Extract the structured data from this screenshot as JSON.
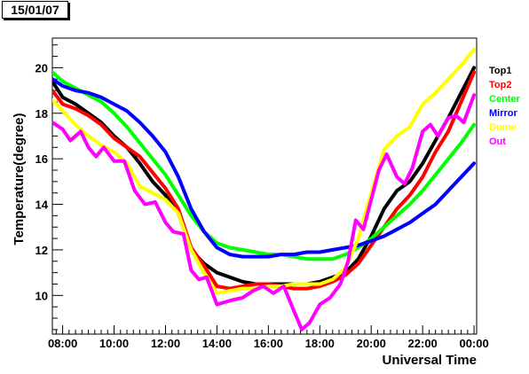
{
  "date_label": "15/01/07",
  "chart_data": {
    "type": "line",
    "title": "",
    "xlabel": "Universal Time",
    "ylabel": "Temperature(degree)",
    "xlim": [
      7.6,
      24.1
    ],
    "ylim": [
      8.3,
      21.3
    ],
    "x_ticks": [
      8,
      10,
      12,
      14,
      16,
      18,
      20,
      22,
      24
    ],
    "x_tick_labels": [
      "08:00",
      "10:00",
      "12:00",
      "14:00",
      "16:00",
      "18:00",
      "20:00",
      "22:00",
      "00:00"
    ],
    "y_ticks": [
      10,
      12,
      14,
      16,
      18,
      20
    ],
    "y_tick_labels": [
      "10",
      "12",
      "14",
      "16",
      "18",
      "20"
    ],
    "grid": false,
    "legend_position": "right",
    "series": [
      {
        "name": "Top1",
        "color": "#000000",
        "x": [
          7.6,
          8.0,
          8.5,
          9.0,
          9.5,
          10.0,
          10.5,
          11.0,
          11.5,
          12.0,
          12.5,
          13.0,
          13.5,
          14.0,
          14.5,
          15.0,
          15.5,
          16.0,
          16.5,
          17.0,
          17.5,
          18.0,
          18.5,
          19.0,
          19.5,
          20.0,
          20.5,
          21.0,
          21.5,
          22.0,
          22.5,
          23.0,
          23.5,
          24.0
        ],
        "y": [
          19.4,
          18.7,
          18.4,
          18.0,
          17.6,
          17.0,
          16.5,
          15.8,
          15.0,
          14.4,
          13.6,
          12.0,
          11.4,
          11.0,
          10.8,
          10.6,
          10.5,
          10.5,
          10.5,
          10.5,
          10.5,
          10.6,
          10.8,
          11.0,
          11.6,
          12.6,
          13.8,
          14.6,
          15.0,
          15.8,
          16.8,
          17.8,
          18.9,
          20.0
        ]
      },
      {
        "name": "Top2",
        "color": "#ff0000",
        "x": [
          7.6,
          8.0,
          8.5,
          9.0,
          9.5,
          10.0,
          10.5,
          11.0,
          11.5,
          12.0,
          12.5,
          13.0,
          13.5,
          14.0,
          14.5,
          15.0,
          15.5,
          16.0,
          16.5,
          17.0,
          17.5,
          18.0,
          18.5,
          19.0,
          19.5,
          20.0,
          20.5,
          21.0,
          21.5,
          22.0,
          22.5,
          23.0,
          23.5,
          24.0
        ],
        "y": [
          19.0,
          18.4,
          18.2,
          17.9,
          17.5,
          16.9,
          16.5,
          16.1,
          15.4,
          14.7,
          13.8,
          12.1,
          11.3,
          10.4,
          10.3,
          10.4,
          10.5,
          10.5,
          10.4,
          10.3,
          10.3,
          10.4,
          10.6,
          10.9,
          11.4,
          12.2,
          13.0,
          13.8,
          14.4,
          15.2,
          16.3,
          17.2,
          18.5,
          19.8
        ]
      },
      {
        "name": "Center",
        "color": "#00ff00",
        "x": [
          7.6,
          8.0,
          8.5,
          9.0,
          9.5,
          10.0,
          10.5,
          11.0,
          11.5,
          12.0,
          12.5,
          13.0,
          13.5,
          14.0,
          14.5,
          15.0,
          15.5,
          16.0,
          16.5,
          17.0,
          17.5,
          18.0,
          18.5,
          19.0,
          19.5,
          20.0,
          20.5,
          21.0,
          21.5,
          22.0,
          22.5,
          23.0,
          23.5,
          24.0
        ],
        "y": [
          19.8,
          19.4,
          19.1,
          18.8,
          18.5,
          18.0,
          17.4,
          16.7,
          16.0,
          15.3,
          14.4,
          13.5,
          12.8,
          12.3,
          12.1,
          12.0,
          11.9,
          11.8,
          11.8,
          11.7,
          11.6,
          11.6,
          11.6,
          11.8,
          12.1,
          12.5,
          13.0,
          13.5,
          14.0,
          14.6,
          15.3,
          16.0,
          16.7,
          17.5
        ]
      },
      {
        "name": "Mirror",
        "color": "#0000ff",
        "x": [
          7.6,
          8.0,
          8.5,
          9.0,
          9.5,
          10.0,
          10.5,
          11.0,
          11.5,
          12.0,
          12.5,
          13.0,
          13.5,
          14.0,
          14.5,
          15.0,
          15.5,
          16.0,
          16.5,
          17.0,
          17.5,
          18.0,
          18.5,
          19.0,
          19.5,
          20.0,
          20.5,
          21.0,
          21.5,
          22.0,
          22.5,
          23.0,
          23.5,
          24.0
        ],
        "y": [
          19.5,
          19.2,
          19.0,
          18.9,
          18.7,
          18.4,
          18.1,
          17.6,
          17.0,
          16.3,
          15.2,
          13.8,
          12.8,
          12.1,
          11.8,
          11.7,
          11.7,
          11.7,
          11.8,
          11.8,
          11.9,
          11.9,
          12.0,
          12.1,
          12.2,
          12.4,
          12.6,
          12.9,
          13.2,
          13.6,
          14.0,
          14.6,
          15.2,
          15.8
        ]
      },
      {
        "name": "Dome",
        "color": "#ffff00",
        "x": [
          7.6,
          8.0,
          8.5,
          9.0,
          9.5,
          10.0,
          10.5,
          11.0,
          11.5,
          12.0,
          12.5,
          13.0,
          13.5,
          14.0,
          14.5,
          15.0,
          15.5,
          16.0,
          16.5,
          17.0,
          17.5,
          18.0,
          18.5,
          19.0,
          19.5,
          20.0,
          20.5,
          21.0,
          21.5,
          22.0,
          22.5,
          23.0,
          23.5,
          24.0
        ],
        "y": [
          18.6,
          18.1,
          17.5,
          17.0,
          16.6,
          16.3,
          15.8,
          14.8,
          14.5,
          14.2,
          13.6,
          12.0,
          11.0,
          10.1,
          10.2,
          10.3,
          10.3,
          10.4,
          10.4,
          10.5,
          10.5,
          10.5,
          10.7,
          11.2,
          12.5,
          14.5,
          16.4,
          17.0,
          17.4,
          18.4,
          18.9,
          19.5,
          20.1,
          20.8
        ]
      },
      {
        "name": "Out",
        "color": "#ff00ff",
        "x": [
          7.6,
          8.0,
          8.3,
          8.7,
          9.0,
          9.3,
          9.6,
          10.0,
          10.4,
          10.8,
          11.2,
          11.6,
          12.0,
          12.3,
          12.7,
          13.0,
          13.3,
          13.6,
          14.0,
          14.3,
          14.6,
          15.0,
          15.4,
          15.8,
          16.2,
          16.6,
          17.0,
          17.3,
          17.6,
          18.0,
          18.4,
          18.8,
          19.1,
          19.4,
          19.7,
          20.0,
          20.3,
          20.6,
          21.0,
          21.3,
          21.6,
          22.0,
          22.3,
          22.6,
          23.0,
          23.3,
          23.6,
          24.0
        ],
        "y": [
          17.6,
          17.3,
          16.8,
          17.2,
          16.5,
          16.1,
          16.5,
          15.9,
          15.9,
          14.6,
          14.0,
          14.1,
          13.2,
          12.8,
          12.7,
          11.1,
          10.7,
          10.8,
          9.6,
          9.7,
          9.8,
          9.9,
          10.2,
          10.4,
          10.1,
          10.4,
          9.3,
          8.5,
          8.8,
          9.6,
          9.9,
          10.5,
          11.5,
          13.3,
          12.9,
          14.2,
          15.5,
          16.2,
          15.2,
          14.9,
          15.6,
          17.2,
          17.5,
          17.0,
          17.8,
          17.9,
          17.6,
          18.8
        ]
      }
    ]
  }
}
